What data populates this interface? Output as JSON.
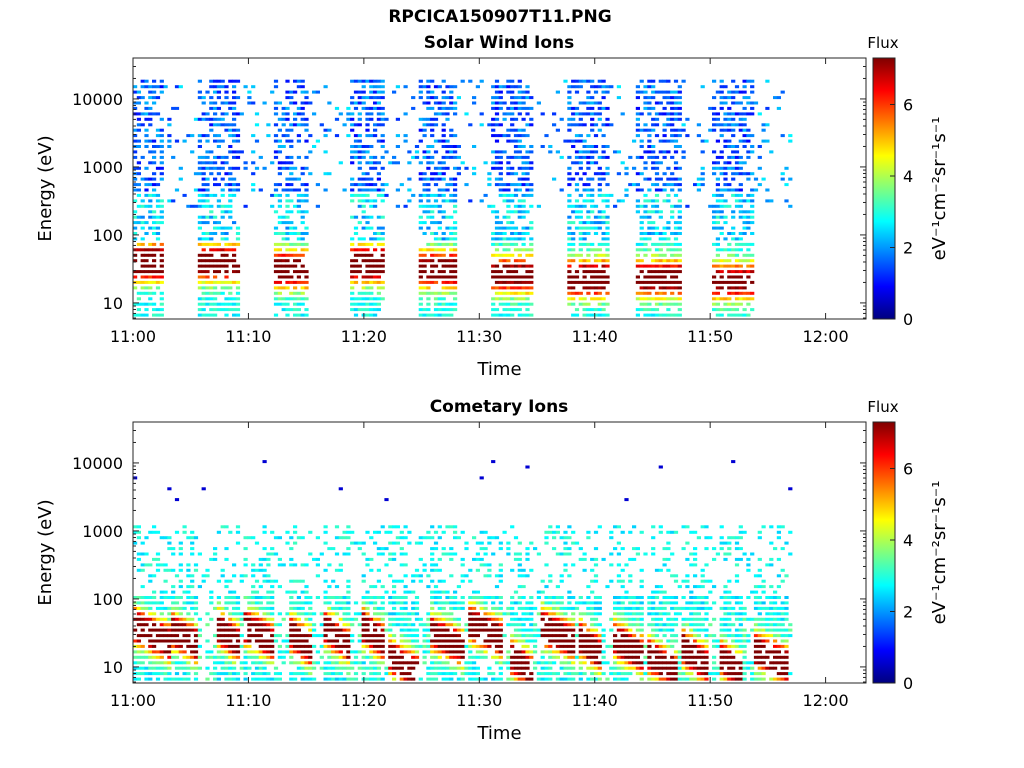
{
  "page_title": "RPCICA150907T11.PNG",
  "colormap": [
    "#00007f",
    "#0000ff",
    "#007fff",
    "#00ffff",
    "#7fff7f",
    "#ffff00",
    "#ff7f00",
    "#ff0000",
    "#7f0000"
  ],
  "chart_data": [
    {
      "type": "heatmap",
      "title": "Solar Wind Ions",
      "xlabel": "Time",
      "ylabel": "Energy (eV)",
      "x_ticks": [
        "11:00",
        "11:10",
        "11:20",
        "11:30",
        "11:40",
        "11:50",
        "12:00"
      ],
      "x_range_minutes": [
        0,
        63.5
      ],
      "y_ticks": [
        "10",
        "100",
        "1000",
        "10000"
      ],
      "y_scale": "log",
      "y_range": [
        5.8,
        40000
      ],
      "colorbar": {
        "label": "Flux",
        "unit": "eV⁻¹cm⁻²sr⁻¹s⁻¹",
        "ticks": [
          "0",
          "2",
          "4",
          "6"
        ],
        "range": [
          0,
          7.3
        ]
      },
      "data_end_minute": 57,
      "bursts": [
        {
          "start_minute": 0.0,
          "end_minute": 2.5,
          "peak_energy_ev": 38,
          "peak_flux": 6.6
        },
        {
          "start_minute": 5.5,
          "end_minute": 9.0,
          "peak_energy_ev": 38,
          "peak_flux": 6.0
        },
        {
          "start_minute": 12.0,
          "end_minute": 15.0,
          "peak_energy_ev": 30,
          "peak_flux": 5.9
        },
        {
          "start_minute": 18.5,
          "end_minute": 21.5,
          "peak_energy_ev": 36,
          "peak_flux": 6.5
        },
        {
          "start_minute": 24.5,
          "end_minute": 28.0,
          "peak_energy_ev": 30,
          "peak_flux": 5.7
        },
        {
          "start_minute": 31.0,
          "end_minute": 34.5,
          "peak_energy_ev": 25,
          "peak_flux": 5.4
        },
        {
          "start_minute": 37.5,
          "end_minute": 41.0,
          "peak_energy_ev": 22,
          "peak_flux": 6.1
        },
        {
          "start_minute": 43.5,
          "end_minute": 47.5,
          "peak_energy_ev": 22,
          "peak_flux": 5.6
        },
        {
          "start_minute": 50.0,
          "end_minute": 53.5,
          "peak_energy_ev": 20,
          "peak_flux": 5.2
        }
      ]
    },
    {
      "type": "heatmap",
      "title": "Cometary Ions",
      "xlabel": "Time",
      "ylabel": "Energy (eV)",
      "x_ticks": [
        "11:00",
        "11:10",
        "11:20",
        "11:30",
        "11:40",
        "11:50",
        "12:00"
      ],
      "x_range_minutes": [
        0,
        63.5
      ],
      "y_ticks": [
        "10",
        "100",
        "1000",
        "10000"
      ],
      "y_scale": "log",
      "y_range": [
        5.8,
        40000
      ],
      "colorbar": {
        "label": "Flux",
        "unit": "eV⁻¹cm⁻²sr⁻¹s⁻¹",
        "ticks": [
          "0",
          "2",
          "4",
          "6"
        ],
        "range": [
          0,
          7.3
        ]
      },
      "data_end_minute": 57,
      "bursts": [
        {
          "start_minute": 0.0,
          "end_minute": 3.0,
          "peak_energy_ev": 38,
          "peak_flux": 7.2
        },
        {
          "start_minute": 3.0,
          "end_minute": 5.5,
          "peak_energy_ev": 35,
          "peak_flux": 6.8
        },
        {
          "start_minute": 7.0,
          "end_minute": 9.0,
          "peak_energy_ev": 38,
          "peak_flux": 7.0
        },
        {
          "start_minute": 9.5,
          "end_minute": 12.0,
          "peak_energy_ev": 38,
          "peak_flux": 7.1
        },
        {
          "start_minute": 13.5,
          "end_minute": 15.5,
          "peak_energy_ev": 30,
          "peak_flux": 6.8
        },
        {
          "start_minute": 16.5,
          "end_minute": 18.5,
          "peak_energy_ev": 35,
          "peak_flux": 6.5
        },
        {
          "start_minute": 19.5,
          "end_minute": 21.5,
          "peak_energy_ev": 40,
          "peak_flux": 7.0
        },
        {
          "start_minute": 22.0,
          "end_minute": 24.5,
          "peak_energy_ev": 14,
          "peak_flux": 6.7
        },
        {
          "start_minute": 25.5,
          "end_minute": 28.5,
          "peak_energy_ev": 32,
          "peak_flux": 6.6
        },
        {
          "start_minute": 29.0,
          "end_minute": 32.0,
          "peak_energy_ev": 42,
          "peak_flux": 7.2
        },
        {
          "start_minute": 32.5,
          "end_minute": 34.5,
          "peak_energy_ev": 14,
          "peak_flux": 6.6
        },
        {
          "start_minute": 35.0,
          "end_minute": 38.0,
          "peak_energy_ev": 40,
          "peak_flux": 7.2
        },
        {
          "start_minute": 38.5,
          "end_minute": 40.5,
          "peak_energy_ev": 25,
          "peak_flux": 6.7
        },
        {
          "start_minute": 41.5,
          "end_minute": 44.0,
          "peak_energy_ev": 25,
          "peak_flux": 7.0
        },
        {
          "start_minute": 44.5,
          "end_minute": 47.0,
          "peak_energy_ev": 14,
          "peak_flux": 6.8
        },
        {
          "start_minute": 47.5,
          "end_minute": 49.5,
          "peak_energy_ev": 18,
          "peak_flux": 7.1
        },
        {
          "start_minute": 50.5,
          "end_minute": 52.5,
          "peak_energy_ev": 14,
          "peak_flux": 6.6
        },
        {
          "start_minute": 53.5,
          "end_minute": 56.5,
          "peak_energy_ev": 18,
          "peak_flux": 7.2
        }
      ]
    }
  ]
}
